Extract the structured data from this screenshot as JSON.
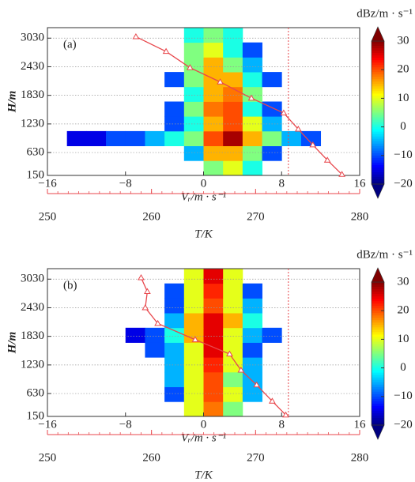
{
  "chart_data": [
    {
      "type": "heatmap",
      "panel_label": "(a)",
      "ylabel": "H/m",
      "xlabel": "Vᵣ/m · s⁻¹",
      "x2label": "T/K",
      "colorbar_label": "dBz/m · s⁻¹",
      "xlim": [
        -16,
        16
      ],
      "xticks": [
        {
          "value": -16,
          "label": "−16"
        },
        {
          "value": -8,
          "label": "−8"
        },
        0,
        8,
        16
      ],
      "ylim": [
        150,
        3250
      ],
      "yticks": [
        150,
        630,
        1230,
        1830,
        2430,
        3030
      ],
      "grid": true,
      "x2lim": [
        250,
        280
      ],
      "x2ticks": [
        250,
        260,
        270,
        280
      ],
      "clim": [
        -20,
        30
      ],
      "cticks": [
        {
          "value": -20,
          "label": "−20"
        },
        {
          "value": -10,
          "label": "−10"
        },
        0,
        10,
        20,
        30
      ],
      "x_bins": [
        -14,
        -12,
        -10,
        -8,
        -6,
        -4,
        -2,
        0,
        2,
        4,
        6,
        8,
        10,
        12
      ],
      "y_bins": [
        150,
        460,
        770,
        1080,
        1390,
        1700,
        2010,
        2320,
        2630,
        2940,
        3250
      ],
      "z": [
        [
          null,
          null,
          null,
          null,
          null,
          null,
          null,
          5,
          10,
          0,
          null,
          null,
          null
        ],
        [
          null,
          null,
          null,
          null,
          null,
          null,
          -5,
          15,
          15,
          5,
          -10,
          null,
          null
        ],
        [
          -15,
          -15,
          -10,
          -10,
          -5,
          0,
          5,
          20,
          28,
          15,
          5,
          -5,
          -10
        ],
        [
          null,
          null,
          null,
          null,
          null,
          -10,
          0,
          15,
          20,
          10,
          -5,
          null,
          null
        ],
        [
          null,
          null,
          null,
          null,
          null,
          -10,
          5,
          18,
          20,
          0,
          -10,
          null,
          null
        ],
        [
          null,
          null,
          null,
          null,
          null,
          null,
          0,
          15,
          18,
          5,
          null,
          null,
          null
        ],
        [
          null,
          null,
          null,
          null,
          null,
          -10,
          5,
          15,
          15,
          0,
          -10,
          null,
          null
        ],
        [
          null,
          null,
          null,
          null,
          null,
          null,
          5,
          15,
          5,
          -5,
          null,
          null,
          null
        ],
        [
          null,
          null,
          null,
          null,
          null,
          null,
          5,
          10,
          0,
          -10,
          null,
          null,
          null
        ],
        [
          null,
          null,
          null,
          null,
          null,
          null,
          0,
          5,
          0,
          null,
          null,
          null,
          null
        ]
      ],
      "temperature": {
        "color": "#e8474c",
        "x2": [
          258.5,
          261.4,
          263.7,
          266.6,
          269.6,
          272.7,
          274.1,
          275.5,
          276.9,
          278.3
        ],
        "y": [
          3060,
          2750,
          2410,
          2110,
          1770,
          1460,
          1120,
          790,
          470,
          170
        ]
      },
      "freezing_line": 273.15
    },
    {
      "type": "heatmap",
      "panel_label": "(b)",
      "ylabel": "H/m",
      "xlabel": "Vᵣ/m · s⁻¹",
      "x2label": "T/K",
      "colorbar_label": "dBz/m · s⁻¹",
      "xlim": [
        -16,
        16
      ],
      "xticks": [
        {
          "value": -16,
          "label": "−16"
        },
        {
          "value": -8,
          "label": "−8"
        },
        0,
        8,
        16
      ],
      "ylim": [
        150,
        3250
      ],
      "yticks": [
        150,
        630,
        1230,
        1830,
        2430,
        3030
      ],
      "grid": true,
      "x2lim": [
        250,
        280
      ],
      "x2ticks": [
        250,
        260,
        270,
        280
      ],
      "clim": [
        -20,
        30
      ],
      "cticks": [
        {
          "value": -20,
          "label": "−20"
        },
        {
          "value": -10,
          "label": "−10"
        },
        0,
        10,
        20,
        30
      ],
      "x_bins": [
        -14,
        -12,
        -10,
        -8,
        -6,
        -4,
        -2,
        0,
        2,
        4,
        6,
        8,
        10,
        12
      ],
      "y_bins": [
        150,
        460,
        770,
        1080,
        1390,
        1700,
        2010,
        2320,
        2630,
        2940,
        3250
      ],
      "z": [
        [
          null,
          null,
          null,
          null,
          null,
          null,
          10,
          18,
          5,
          null,
          null,
          null,
          null
        ],
        [
          null,
          null,
          null,
          null,
          null,
          -10,
          10,
          20,
          10,
          -5,
          null,
          null,
          null
        ],
        [
          null,
          null,
          null,
          null,
          null,
          -5,
          10,
          20,
          5,
          -5,
          null,
          null,
          null
        ],
        [
          null,
          null,
          null,
          null,
          null,
          -5,
          10,
          22,
          10,
          -5,
          null,
          null,
          null
        ],
        [
          null,
          null,
          null,
          null,
          -10,
          -5,
          10,
          25,
          10,
          -10,
          null,
          null,
          null
        ],
        [
          null,
          null,
          null,
          -15,
          -10,
          0,
          15,
          25,
          10,
          -5,
          -10,
          null,
          null
        ],
        [
          null,
          null,
          null,
          null,
          null,
          -5,
          15,
          25,
          15,
          0,
          null,
          null,
          null
        ],
        [
          null,
          null,
          null,
          null,
          null,
          -10,
          10,
          20,
          10,
          -5,
          null,
          null,
          null
        ],
        [
          null,
          null,
          null,
          null,
          null,
          -10,
          10,
          22,
          10,
          -10,
          null,
          null,
          null
        ],
        [
          null,
          null,
          null,
          null,
          null,
          null,
          10,
          25,
          10,
          null,
          null,
          null,
          null
        ]
      ],
      "temperature": {
        "color": "#e8474c",
        "x2": [
          259.0,
          259.6,
          259.4,
          260.6,
          264.2,
          267.5,
          268.6,
          270.1,
          271.6,
          272.9
        ],
        "y": [
          3060,
          2770,
          2430,
          2100,
          1760,
          1460,
          1120,
          810,
          470,
          180
        ]
      },
      "freezing_line": 273.15
    }
  ]
}
